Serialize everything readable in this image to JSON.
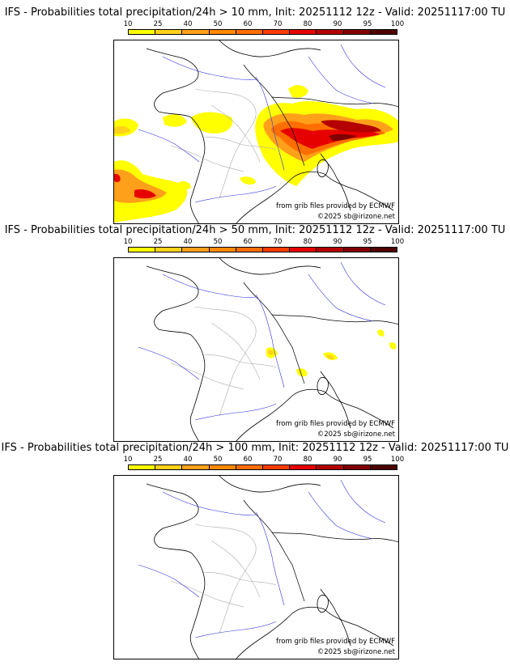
{
  "colorbar": {
    "labels": [
      "10",
      "25",
      "40",
      "50",
      "60",
      "70",
      "80",
      "90",
      "95",
      "100"
    ],
    "colors": [
      "#ffff00",
      "#ffd21a",
      "#ffa01a",
      "#ff8a00",
      "#ff6e00",
      "#ff3c00",
      "#e60000",
      "#b40000",
      "#820000",
      "#500000"
    ]
  },
  "credits": {
    "source": "from grib files provided by ECMWF",
    "copyright": "©2025 sb@irizone.net"
  },
  "panels": [
    {
      "title": "IFS - Probabilities total precipitation/24h > 10 mm, Init: 20251112 12z - Valid: 20251117:00 TU",
      "threshold_mm": 10
    },
    {
      "title": "IFS - Probabilities total precipitation/24h > 50 mm, Init: 20251112 12z - Valid: 20251117:00 TU",
      "threshold_mm": 50
    },
    {
      "title": "IFS - Probabilities total precipitation/24h > 100 mm, Init: 20251112 12z - Valid: 20251117:00 TU",
      "threshold_mm": 100
    }
  ],
  "palette": {
    "coast": "#000000",
    "borders": "#888888",
    "rivers": "#3030dd",
    "regions": "#aaaaaa"
  }
}
